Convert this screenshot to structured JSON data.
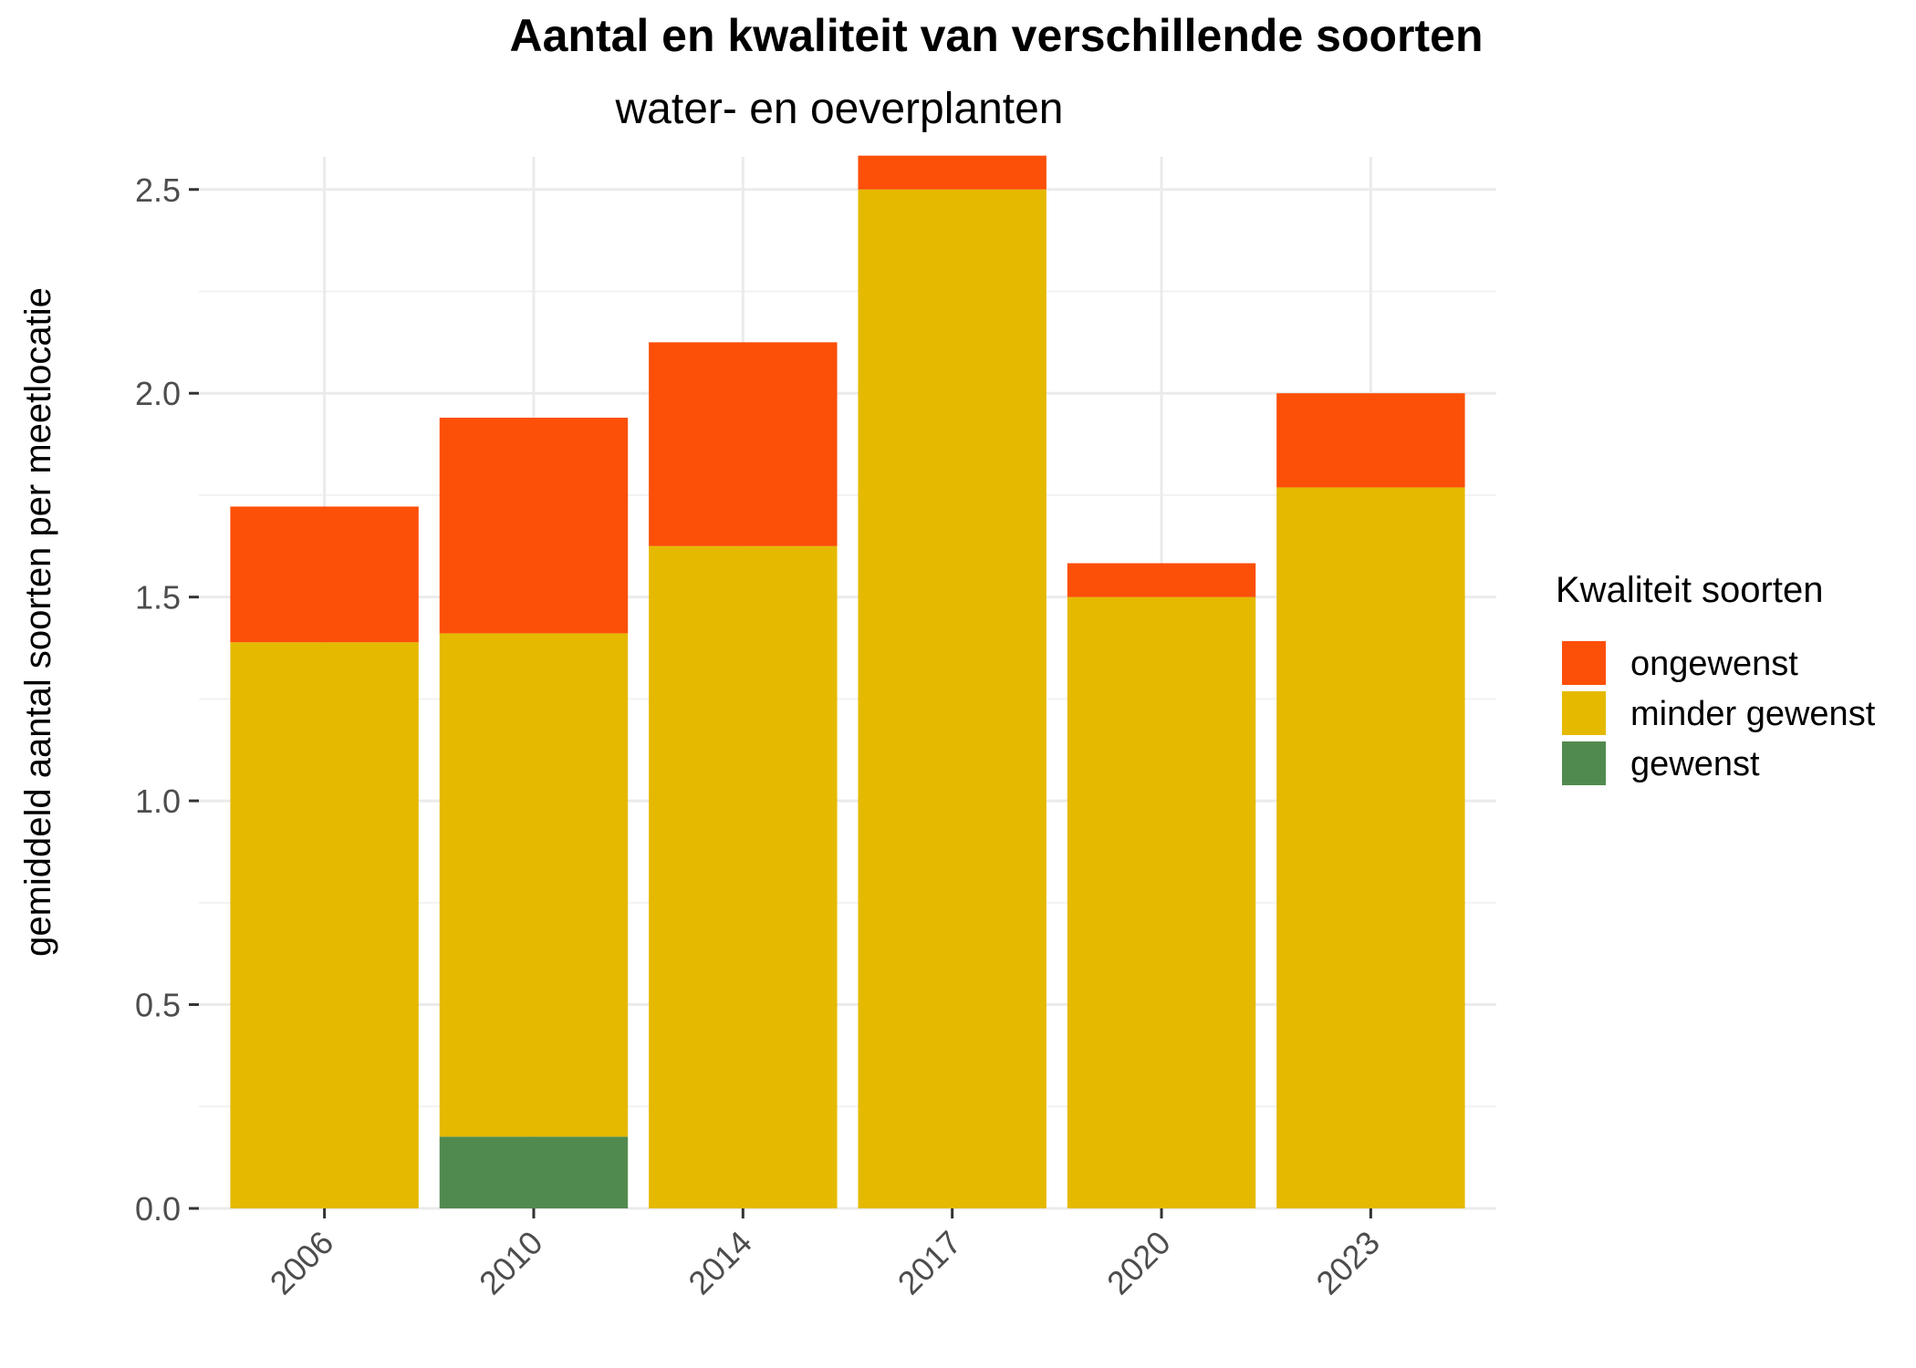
{
  "chart_data": {
    "type": "bar",
    "stacked": true,
    "title": "Aantal en kwaliteit van verschillende soorten",
    "subtitle": "water- en oeverplanten",
    "xlabel": "",
    "ylabel": "gemiddeld aantal soorten per meetlocatie",
    "categories": [
      "2006",
      "2010",
      "2014",
      "2017",
      "2020",
      "2023"
    ],
    "series": [
      {
        "name": "gewenst",
        "color": "#518a4f",
        "values": [
          0,
          0.176,
          0,
          0,
          0,
          0
        ]
      },
      {
        "name": "minder gewenst",
        "color": "#e5b900",
        "values": [
          1.389,
          1.235,
          1.625,
          2.5,
          1.5,
          1.769
        ]
      },
      {
        "name": "ongewenst",
        "color": "#fc4f08",
        "values": [
          0.333,
          0.529,
          0.5,
          0.083,
          0.083,
          0.231
        ]
      }
    ],
    "ylim": [
      0,
      2.58
    ],
    "yticks": [
      "0.0",
      "0.5",
      "1.0",
      "1.5",
      "2.0",
      "2.5"
    ],
    "grid": true,
    "legend": {
      "title": "Kwaliteit soorten",
      "position": "right",
      "order": [
        "ongewenst",
        "minder gewenst",
        "gewenst"
      ]
    }
  }
}
